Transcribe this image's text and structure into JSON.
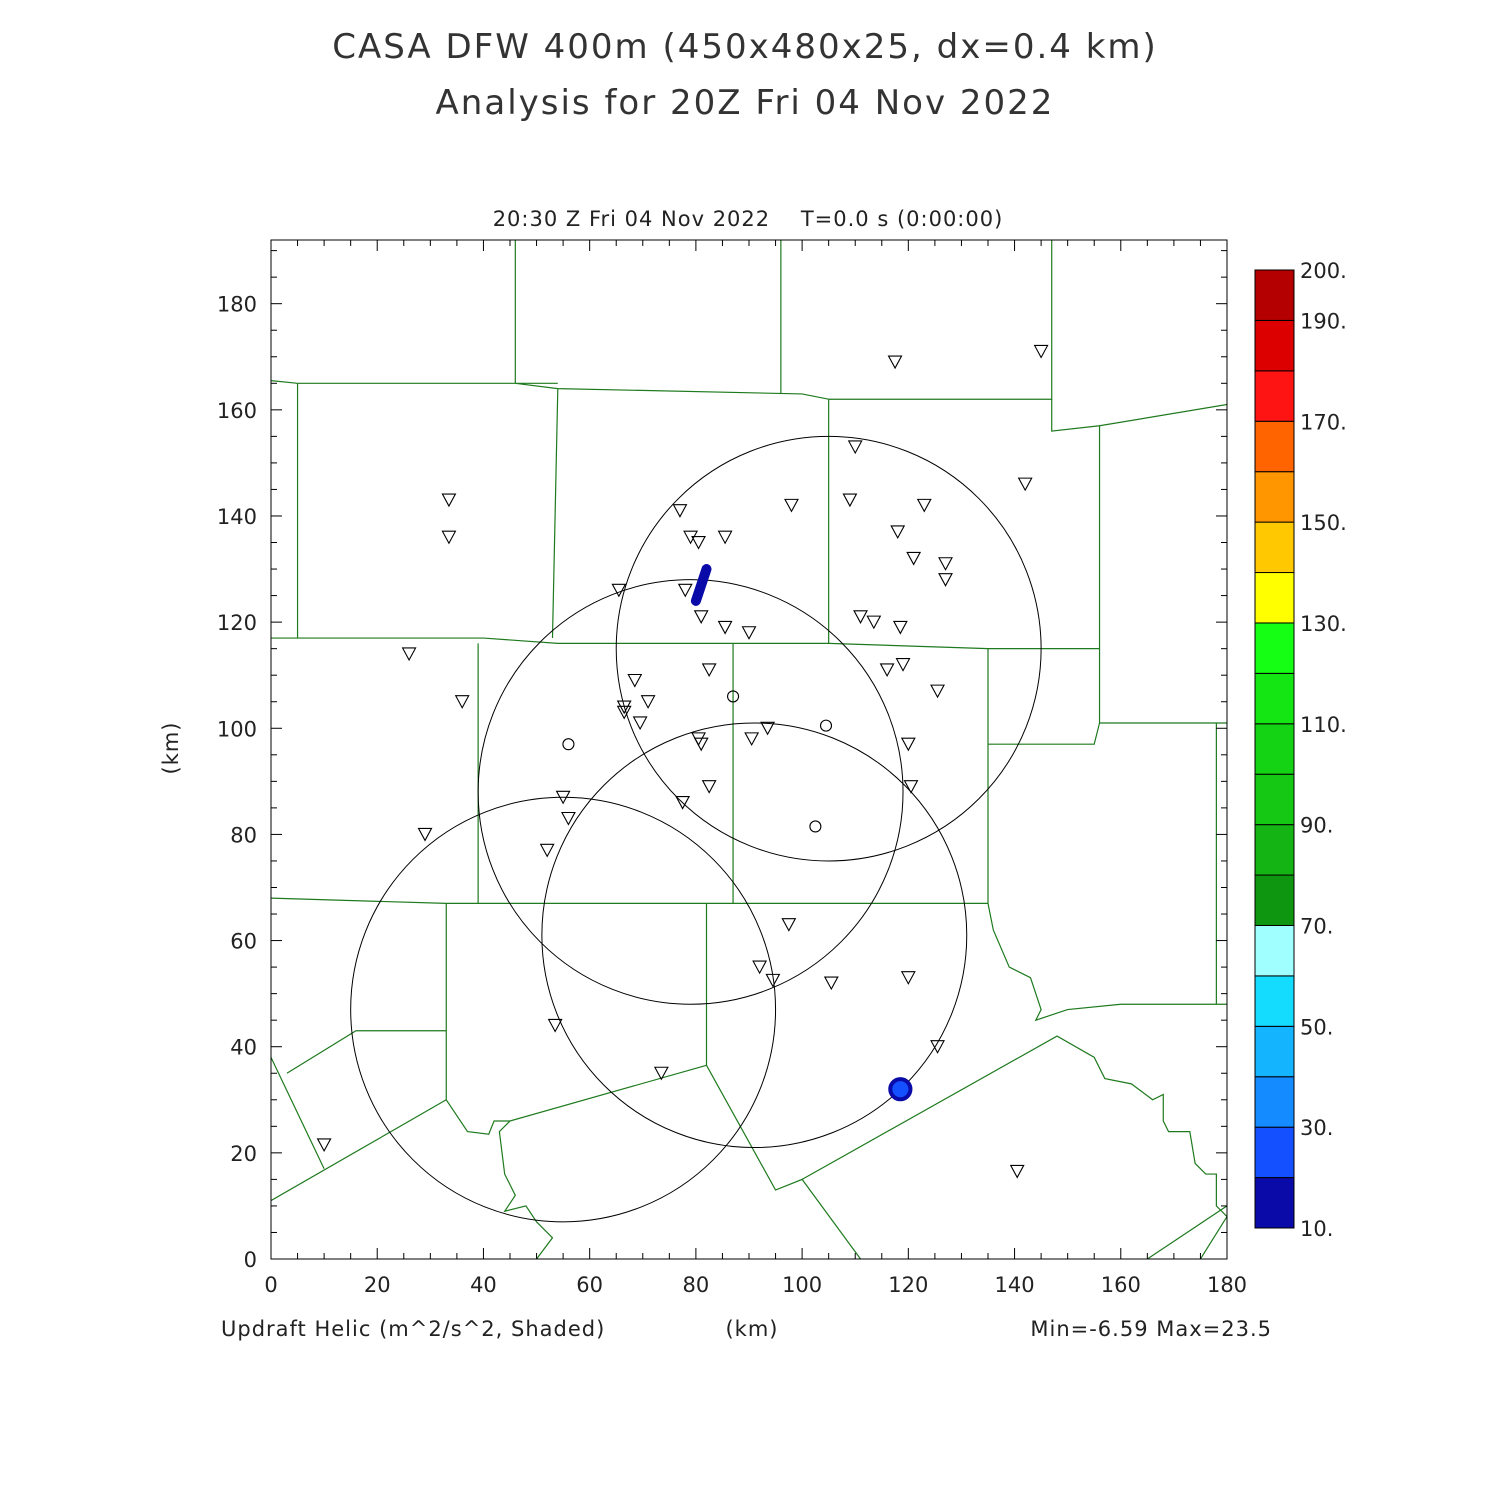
{
  "title_line1": "CASA DFW 400m (450x480x25, dx=0.4 km)",
  "title_line2": "Analysis for 20Z Fri 04 Nov 2022",
  "subtitle": "20:30 Z Fri 04 Nov 2022    T=0.0 s (0:00:00)",
  "field_label": "Updraft Helic (m^2/s^2, Shaded)",
  "xlabel": "(km)",
  "ylabel": "(km)",
  "minmax": "Min=-6.59 Max=23.5",
  "chart_data": {
    "type": "heatmap",
    "xlim": [
      0,
      180
    ],
    "ylim": [
      0,
      192
    ],
    "xticks": [
      0,
      20,
      40,
      60,
      80,
      100,
      120,
      140,
      160,
      180
    ],
    "yticks": [
      0,
      20,
      40,
      60,
      80,
      100,
      120,
      140,
      160,
      180
    ],
    "colorbar": {
      "levels": [
        10,
        20,
        30,
        40,
        50,
        60,
        70,
        80,
        90,
        100,
        110,
        120,
        130,
        140,
        150,
        160,
        170,
        180,
        190,
        200
      ],
      "labels": [
        "10.",
        "30.",
        "50.",
        "70.",
        "90.",
        "110.",
        "130.",
        "150.",
        "170.",
        "190.",
        "200."
      ],
      "label_values": [
        10,
        30,
        50,
        70,
        90,
        110,
        130,
        150,
        170,
        190,
        200
      ],
      "colors": [
        "#0a0aa8",
        "#1450ff",
        "#148cff",
        "#14b4ff",
        "#14dcff",
        "#a0ffff",
        "#0f9610",
        "#14b414",
        "#14c814",
        "#14d214",
        "#14e614",
        "#14ff14",
        "#ffff00",
        "#ffc800",
        "#ff9600",
        "#ff6400",
        "#ff1414",
        "#dc0000",
        "#b40000"
      ]
    },
    "radar_circles": [
      {
        "cx": 105,
        "cy": 115,
        "r": 40
      },
      {
        "cx": 79,
        "cy": 88,
        "r": 40
      },
      {
        "cx": 91,
        "cy": 61,
        "r": 40
      },
      {
        "cx": 55,
        "cy": 47,
        "r": 40
      }
    ],
    "radar_sites": [
      [
        56,
        97
      ],
      [
        87,
        106
      ],
      [
        104.5,
        100.5
      ],
      [
        102.5,
        81.5
      ]
    ],
    "stations": [
      [
        117.5,
        169
      ],
      [
        145,
        171
      ],
      [
        33.5,
        143
      ],
      [
        33.5,
        136
      ],
      [
        110,
        153
      ],
      [
        77,
        141
      ],
      [
        98,
        142
      ],
      [
        109,
        143
      ],
      [
        123,
        142
      ],
      [
        142,
        146
      ],
      [
        79,
        136
      ],
      [
        80.5,
        135
      ],
      [
        85.5,
        136
      ],
      [
        118,
        137
      ],
      [
        121,
        132
      ],
      [
        127,
        131
      ],
      [
        127,
        128
      ],
      [
        65.5,
        126
      ],
      [
        78,
        126
      ],
      [
        81,
        121
      ],
      [
        85.5,
        119
      ],
      [
        90,
        118
      ],
      [
        111,
        121
      ],
      [
        113.5,
        120
      ],
      [
        118.5,
        119
      ],
      [
        26,
        114
      ],
      [
        36,
        105
      ],
      [
        68.5,
        109
      ],
      [
        82.5,
        111
      ],
      [
        116,
        111
      ],
      [
        119,
        112
      ],
      [
        125.5,
        107
      ],
      [
        66.5,
        104
      ],
      [
        71,
        105
      ],
      [
        66.5,
        103
      ],
      [
        69.5,
        101
      ],
      [
        93.5,
        100
      ],
      [
        90.5,
        98
      ],
      [
        80.5,
        98
      ],
      [
        81,
        97
      ],
      [
        120,
        97
      ],
      [
        55,
        87
      ],
      [
        82.5,
        89
      ],
      [
        77.5,
        86
      ],
      [
        120.5,
        89
      ],
      [
        56,
        83
      ],
      [
        29,
        80
      ],
      [
        52,
        77
      ],
      [
        97.5,
        63
      ],
      [
        92,
        55
      ],
      [
        94.5,
        52.5
      ],
      [
        105.5,
        52
      ],
      [
        120,
        53
      ],
      [
        53.5,
        44
      ],
      [
        125.5,
        40
      ],
      [
        73.5,
        35
      ],
      [
        10,
        21.5
      ],
      [
        140.5,
        16.5
      ]
    ],
    "updraft_cells": [
      {
        "shape": "streak",
        "value": 15,
        "points": [
          [
            82,
            130
          ],
          [
            80,
            124
          ]
        ]
      },
      {
        "shape": "blob",
        "value": 15,
        "cx": 118.5,
        "cy": 32
      }
    ],
    "boundaries": [
      [
        [
          0,
          165.5
        ],
        [
          5,
          165
        ],
        [
          54,
          165
        ],
        [
          46,
          165
        ],
        [
          54,
          164
        ],
        [
          100,
          163
        ],
        [
          105,
          162
        ],
        [
          105,
          116
        ]
      ],
      [
        [
          5,
          165
        ],
        [
          5,
          117
        ]
      ],
      [
        [
          0,
          117
        ],
        [
          40,
          117
        ],
        [
          54,
          116
        ],
        [
          90,
          116
        ],
        [
          105,
          116
        ],
        [
          135,
          115
        ],
        [
          156,
          115
        ]
      ],
      [
        [
          46,
          192
        ],
        [
          46,
          165
        ]
      ],
      [
        [
          96,
          192
        ],
        [
          96,
          163
        ]
      ],
      [
        [
          147,
          192
        ],
        [
          147,
          162
        ],
        [
          105,
          162
        ]
      ],
      [
        [
          147,
          162
        ],
        [
          147,
          156
        ],
        [
          156,
          157
        ],
        [
          180,
          161
        ]
      ],
      [
        [
          156,
          157
        ],
        [
          156,
          101
        ],
        [
          155,
          97
        ],
        [
          135,
          97
        ]
      ],
      [
        [
          156,
          101
        ],
        [
          180,
          101
        ]
      ],
      [
        [
          54,
          164
        ],
        [
          53,
          117
        ]
      ],
      [
        [
          39,
          116
        ],
        [
          39,
          67
        ]
      ],
      [
        [
          87,
          116
        ],
        [
          87,
          67
        ]
      ],
      [
        [
          135,
          115
        ],
        [
          135,
          67
        ],
        [
          136,
          62
        ],
        [
          139,
          55
        ],
        [
          143,
          53
        ],
        [
          145,
          47
        ],
        [
          144,
          45
        ],
        [
          150,
          47
        ],
        [
          160,
          48
        ],
        [
          176,
          48
        ],
        [
          180,
          48
        ]
      ],
      [
        [
          0,
          68
        ],
        [
          33,
          67
        ],
        [
          87,
          67
        ],
        [
          135,
          67
        ]
      ],
      [
        [
          33,
          67
        ],
        [
          33,
          30
        ],
        [
          37,
          24
        ],
        [
          41,
          23.5
        ],
        [
          42,
          26
        ],
        [
          45,
          26
        ],
        [
          82,
          36.5
        ],
        [
          82,
          67
        ]
      ],
      [
        [
          0,
          11
        ],
        [
          33,
          30
        ]
      ],
      [
        [
          3,
          35
        ],
        [
          16,
          43
        ],
        [
          33,
          43
        ]
      ],
      [
        [
          0,
          38
        ],
        [
          10,
          17
        ]
      ],
      [
        [
          45,
          26
        ],
        [
          43,
          24
        ],
        [
          44,
          16
        ],
        [
          46,
          12
        ],
        [
          44,
          9
        ],
        [
          48,
          10
        ],
        [
          50,
          7
        ],
        [
          53,
          4
        ],
        [
          50,
          0
        ]
      ],
      [
        [
          82,
          36.5
        ],
        [
          95,
          13
        ],
        [
          100,
          15
        ],
        [
          111,
          0
        ]
      ],
      [
        [
          100,
          15
        ],
        [
          148,
          42
        ],
        [
          155,
          38
        ],
        [
          157,
          34
        ],
        [
          162,
          33
        ],
        [
          166,
          30
        ],
        [
          168,
          31
        ],
        [
          168,
          26
        ],
        [
          169,
          24
        ],
        [
          173,
          24
        ],
        [
          174,
          18
        ],
        [
          176,
          16
        ],
        [
          178,
          16
        ],
        [
          178,
          10
        ],
        [
          180,
          8
        ]
      ],
      [
        [
          180,
          8
        ],
        [
          175,
          0
        ]
      ],
      [
        [
          165,
          0
        ],
        [
          180,
          10
        ]
      ],
      [
        [
          178,
          101
        ],
        [
          178,
          48
        ]
      ]
    ]
  }
}
